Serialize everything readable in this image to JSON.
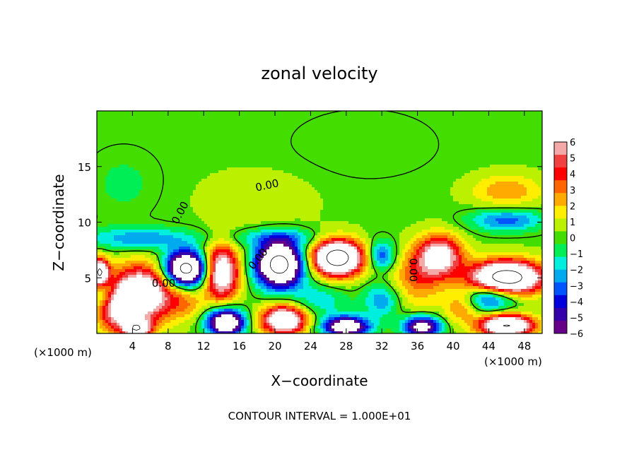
{
  "chart_data": {
    "type": "heatmap",
    "title": "zonal velocity",
    "xlabel": "X−coordinate",
    "ylabel": "Z−coordinate",
    "x_unit_left": "(×1000 m)",
    "x_unit_right": "(×1000 m)",
    "footer": "CONTOUR INTERVAL = 1.000E+01",
    "xlim": [
      0,
      50
    ],
    "ylim": [
      0,
      20
    ],
    "x_ticks": [
      4,
      8,
      12,
      16,
      20,
      24,
      28,
      32,
      36,
      40,
      44,
      48
    ],
    "y_ticks": [
      5,
      10,
      15
    ],
    "colorbar": {
      "range": [
        -6,
        6
      ],
      "labels": [
        6,
        5,
        4,
        3,
        2,
        1,
        0,
        -1,
        -2,
        -3,
        -4,
        -5,
        -6
      ],
      "colors": [
        "#f5a8a8",
        "#f04040",
        "#ff0000",
        "#ff6600",
        "#ffaa00",
        "#ffee00",
        "#bbf000",
        "#44dd00",
        "#00ee55",
        "#00eedd",
        "#00aaee",
        "#0055ff",
        "#0000dd",
        "#3300aa",
        "#660088"
      ]
    },
    "contour_labels": [
      "0.00",
      "0.00",
      "0.00",
      "0.00",
      "0.00",
      "0.00"
    ],
    "field": {
      "background": 0.2,
      "blobs": [
        {
          "x": 3,
          "z": 13.5,
          "sx": 4,
          "sz": 3,
          "v": -0.8
        },
        {
          "x": 46,
          "z": 12.8,
          "sx": 4,
          "sz": 1.5,
          "v": 2.5
        },
        {
          "x": 30,
          "z": 17,
          "sx": 8,
          "sz": 3,
          "v": -0.6
        },
        {
          "x": 18,
          "z": 12,
          "sx": 6,
          "sz": 2.5,
          "v": 1.0
        },
        {
          "x": 46,
          "z": 10.2,
          "sx": 4,
          "sz": 1,
          "v": -3.5
        },
        {
          "x": 5,
          "z": 8.5,
          "sx": 6,
          "sz": 1,
          "v": -3
        },
        {
          "x": 20,
          "z": 8.6,
          "sx": 6,
          "sz": 0.8,
          "v": -2
        },
        {
          "x": 10,
          "z": 5.8,
          "sx": 2.3,
          "sz": 1.5,
          "v": -12
        },
        {
          "x": 5,
          "z": 3.5,
          "sx": 3.5,
          "sz": 2.5,
          "v": 9
        },
        {
          "x": 2,
          "z": 2.2,
          "sx": 2,
          "sz": 2,
          "v": 5
        },
        {
          "x": 14,
          "z": 5.5,
          "sx": 2,
          "sz": 2.5,
          "v": 8
        },
        {
          "x": 20.5,
          "z": 6.2,
          "sx": 2.6,
          "sz": 2,
          "v": -12
        },
        {
          "x": 27,
          "z": 6.8,
          "sx": 2.8,
          "sz": 1.6,
          "v": 12
        },
        {
          "x": 32,
          "z": 7,
          "sx": 1.5,
          "sz": 1.3,
          "v": -4
        },
        {
          "x": 38.5,
          "z": 7,
          "sx": 2.5,
          "sz": 1.8,
          "v": 7
        },
        {
          "x": 36,
          "z": 5,
          "sx": 3,
          "sz": 2.5,
          "v": 3
        },
        {
          "x": 46,
          "z": 5,
          "sx": 4,
          "sz": 1.5,
          "v": 12
        },
        {
          "x": 44,
          "z": 3.2,
          "sx": 3,
          "sz": 1.2,
          "v": -5
        },
        {
          "x": 0.3,
          "z": 5.5,
          "sx": 1,
          "sz": 1.2,
          "v": 10
        },
        {
          "x": 1,
          "z": 3.5,
          "sx": 1.5,
          "sz": 1.5,
          "v": -3
        },
        {
          "x": 4.5,
          "z": 0.4,
          "sx": 1.5,
          "sz": 0.8,
          "v": 8
        },
        {
          "x": 14.5,
          "z": 1,
          "sx": 2,
          "sz": 1.2,
          "v": -10
        },
        {
          "x": 21,
          "z": 1.2,
          "sx": 2.5,
          "sz": 1.3,
          "v": 9
        },
        {
          "x": 28,
          "z": 0.6,
          "sx": 2.5,
          "sz": 0.9,
          "v": -9
        },
        {
          "x": 36.5,
          "z": 0.6,
          "sx": 2,
          "sz": 0.9,
          "v": -8
        },
        {
          "x": 46,
          "z": 0.7,
          "sx": 3,
          "sz": 1,
          "v": 10
        },
        {
          "x": 10,
          "z": 2.8,
          "sx": 2,
          "sz": 1.5,
          "v": 2
        },
        {
          "x": 25,
          "z": 3,
          "sx": 3,
          "sz": 1.5,
          "v": -2
        },
        {
          "x": 32,
          "z": 3,
          "sx": 2,
          "sz": 1.5,
          "v": -3
        },
        {
          "x": 41,
          "z": 2.5,
          "sx": 2,
          "sz": 1.5,
          "v": 3
        }
      ]
    }
  }
}
